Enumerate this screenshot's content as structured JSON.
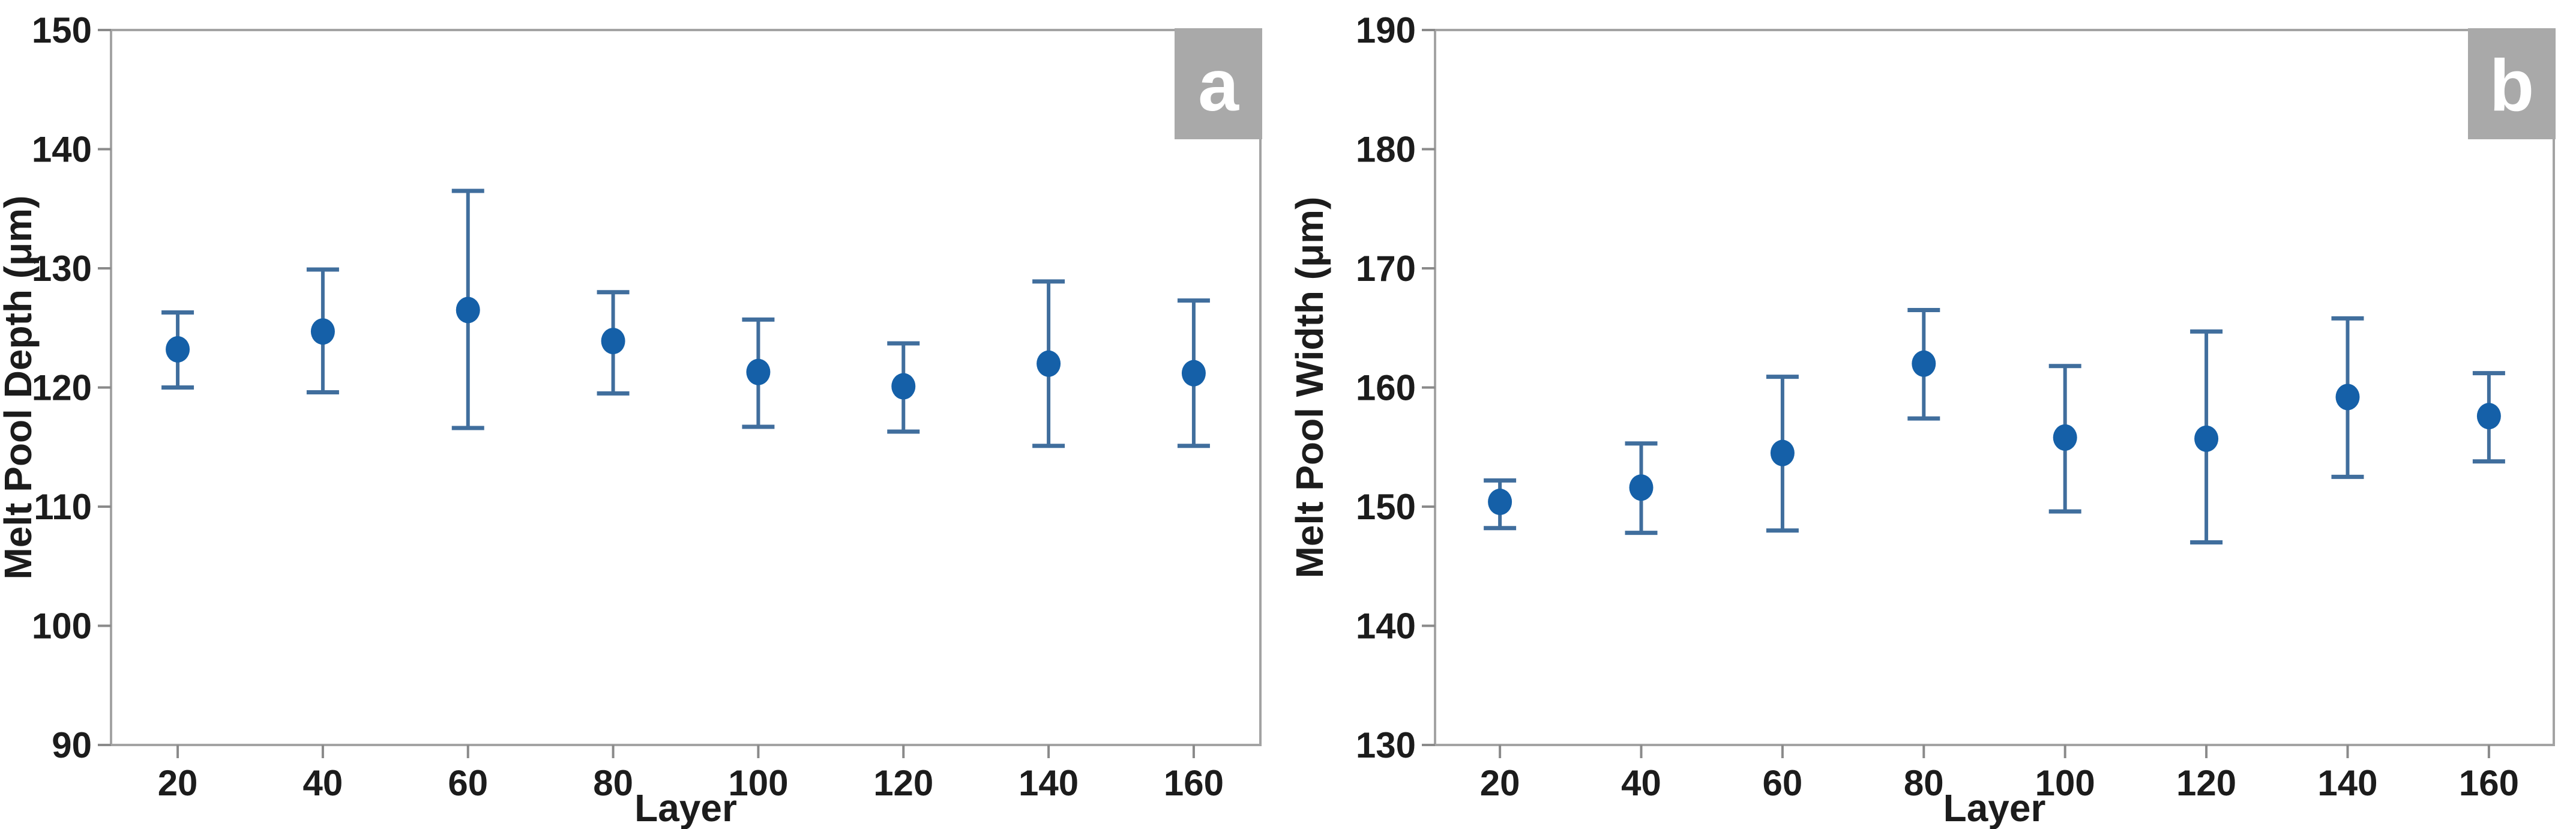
{
  "page": {
    "background": "#ffffff",
    "description": "Two-panel scatter chart with error bars"
  },
  "style": {
    "marker_color": "#1560a8",
    "errorbar_color": "#406e9d",
    "border_color": "#a3a3a3",
    "tick_color": "#8a8a8a",
    "text_color": "#1c1c1c",
    "badge_bg": "#a9a9a9",
    "badge_text_color": "#ffffff"
  },
  "chart_data": [
    {
      "type": "scatter",
      "panel_label": "a",
      "xlabel": "Layer",
      "ylabel": "Melt Pool Depth (μm)",
      "ylim": [
        90,
        150
      ],
      "yticks": [
        90,
        100,
        110,
        120,
        130,
        140,
        150
      ],
      "x": [
        20,
        40,
        60,
        80,
        100,
        120,
        140,
        160
      ],
      "grid": false,
      "legend": "none",
      "series": [
        {
          "name": "Melt Pool Depth",
          "marker": "circle",
          "values": [
            123.2,
            124.7,
            126.5,
            123.9,
            121.3,
            120.1,
            122.0,
            121.2
          ],
          "error_low": [
            120.0,
            119.6,
            116.6,
            119.5,
            116.7,
            116.3,
            115.1,
            115.1
          ],
          "error_high": [
            126.3,
            129.9,
            136.5,
            128.0,
            125.7,
            123.7,
            128.9,
            127.3
          ]
        }
      ]
    },
    {
      "type": "scatter",
      "panel_label": "b",
      "xlabel": "Layer",
      "ylabel": "Melt Pool Width (μm)",
      "ylim": [
        130,
        190
      ],
      "yticks": [
        130,
        140,
        150,
        160,
        170,
        180,
        190
      ],
      "x": [
        20,
        40,
        60,
        80,
        100,
        120,
        140,
        160
      ],
      "grid": false,
      "legend": "none",
      "series": [
        {
          "name": "Melt Pool Width",
          "marker": "circle",
          "values": [
            150.4,
            151.6,
            154.5,
            162.0,
            155.8,
            155.7,
            159.2,
            157.6
          ],
          "error_low": [
            148.2,
            147.8,
            148.0,
            157.4,
            149.6,
            147.0,
            152.5,
            153.8
          ],
          "error_high": [
            152.2,
            155.3,
            160.9,
            166.5,
            161.8,
            164.7,
            165.8,
            161.2
          ]
        }
      ]
    }
  ]
}
